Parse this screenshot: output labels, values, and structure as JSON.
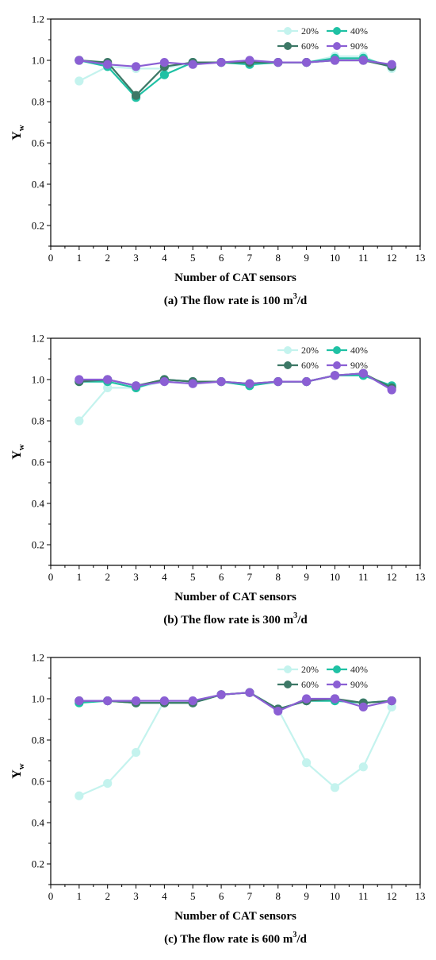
{
  "chart_data": [
    {
      "type": "line",
      "caption": "(a) The flow rate is 100 m³/d",
      "caption_main": "(a) The flow rate is 100 m",
      "caption_sup": "3",
      "caption_tail": "/d",
      "xlabel": "Number of CAT sensors",
      "ylabel": "Y",
      "ylabel_sub": "w",
      "xlim": [
        0,
        13
      ],
      "ylim": [
        0.1,
        1.2
      ],
      "xticks": [
        0,
        1,
        2,
        3,
        4,
        5,
        6,
        7,
        8,
        9,
        10,
        11,
        12,
        13
      ],
      "yticks": [
        0.2,
        0.4,
        0.6,
        0.8,
        1.0,
        1.2
      ],
      "x": [
        1,
        2,
        3,
        4,
        5,
        6,
        7,
        8,
        9,
        10,
        11,
        12
      ],
      "legend_position": "top-right",
      "series": [
        {
          "name": "20%",
          "color": "#c4f3ee",
          "values": [
            0.9,
            0.97,
            0.96,
            0.96,
            0.99,
            0.99,
            0.99,
            0.99,
            0.99,
            1.02,
            1.02,
            0.96
          ]
        },
        {
          "name": "40%",
          "color": "#1fc1a4",
          "values": [
            1.0,
            0.97,
            0.82,
            0.93,
            0.99,
            0.99,
            0.98,
            0.99,
            0.99,
            1.01,
            1.01,
            0.97
          ]
        },
        {
          "name": "60%",
          "color": "#3d7866",
          "values": [
            1.0,
            0.99,
            0.83,
            0.97,
            0.99,
            0.99,
            0.99,
            0.99,
            0.99,
            1.0,
            1.0,
            0.97
          ]
        },
        {
          "name": "90%",
          "color": "#8b5fd4",
          "values": [
            1.0,
            0.98,
            0.97,
            0.99,
            0.98,
            0.99,
            1.0,
            0.99,
            0.99,
            1.0,
            1.0,
            0.98
          ]
        }
      ]
    },
    {
      "type": "line",
      "caption": "(b) The flow rate is 300 m³/d",
      "caption_main": "(b) The flow rate is 300 m",
      "caption_sup": "3",
      "caption_tail": "/d",
      "xlabel": "Number of CAT sensors",
      "ylabel": "Y",
      "ylabel_sub": "w",
      "xlim": [
        0,
        13
      ],
      "ylim": [
        0.1,
        1.2
      ],
      "xticks": [
        0,
        1,
        2,
        3,
        4,
        5,
        6,
        7,
        8,
        9,
        10,
        11,
        12,
        13
      ],
      "yticks": [
        0.2,
        0.4,
        0.6,
        0.8,
        1.0,
        1.2
      ],
      "x": [
        1,
        2,
        3,
        4,
        5,
        6,
        7,
        8,
        9,
        10,
        11,
        12
      ],
      "legend_position": "top-right",
      "series": [
        {
          "name": "20%",
          "color": "#c4f3ee",
          "values": [
            0.8,
            0.96,
            0.96,
            0.99,
            0.98,
            0.99,
            0.97,
            0.99,
            0.99,
            1.02,
            1.02,
            0.97
          ]
        },
        {
          "name": "40%",
          "color": "#1fc1a4",
          "values": [
            0.99,
            0.99,
            0.96,
            1.0,
            0.99,
            0.99,
            0.97,
            0.99,
            0.99,
            1.02,
            1.02,
            0.97
          ]
        },
        {
          "name": "60%",
          "color": "#3d7866",
          "values": [
            0.99,
            1.0,
            0.97,
            1.0,
            0.99,
            0.99,
            0.98,
            0.99,
            0.99,
            1.02,
            1.03,
            0.96
          ]
        },
        {
          "name": "90%",
          "color": "#8b5fd4",
          "values": [
            1.0,
            1.0,
            0.97,
            0.99,
            0.98,
            0.99,
            0.98,
            0.99,
            0.99,
            1.02,
            1.03,
            0.95
          ]
        }
      ]
    },
    {
      "type": "line",
      "caption": "(c) The flow rate is 600 m³/d",
      "caption_main": "(c) The flow rate is 600 m",
      "caption_sup": "3",
      "caption_tail": "/d",
      "xlabel": "Number of CAT sensors",
      "ylabel": "Y",
      "ylabel_sub": "w",
      "xlim": [
        0,
        13
      ],
      "ylim": [
        0.1,
        1.2
      ],
      "xticks": [
        0,
        1,
        2,
        3,
        4,
        5,
        6,
        7,
        8,
        9,
        10,
        11,
        12,
        13
      ],
      "yticks": [
        0.2,
        0.4,
        0.6,
        0.8,
        1.0,
        1.2
      ],
      "x": [
        1,
        2,
        3,
        4,
        5,
        6,
        7,
        8,
        9,
        10,
        11,
        12
      ],
      "legend_position": "top-right",
      "series": [
        {
          "name": "20%",
          "color": "#c4f3ee",
          "values": [
            0.53,
            0.59,
            0.74,
            0.99,
            0.99,
            1.02,
            1.03,
            0.95,
            0.69,
            0.57,
            0.67,
            0.96
          ]
        },
        {
          "name": "40%",
          "color": "#1fc1a4",
          "values": [
            0.98,
            0.99,
            0.98,
            0.98,
            0.98,
            1.02,
            1.03,
            0.95,
            0.99,
            0.99,
            0.98,
            0.99
          ]
        },
        {
          "name": "60%",
          "color": "#3d7866",
          "values": [
            0.99,
            0.99,
            0.98,
            0.98,
            0.98,
            1.02,
            1.03,
            0.95,
            0.99,
            1.0,
            0.98,
            0.99
          ]
        },
        {
          "name": "90%",
          "color": "#8b5fd4",
          "values": [
            0.99,
            0.99,
            0.99,
            0.99,
            0.99,
            1.02,
            1.03,
            0.94,
            1.0,
            1.0,
            0.96,
            0.99
          ]
        }
      ]
    }
  ]
}
